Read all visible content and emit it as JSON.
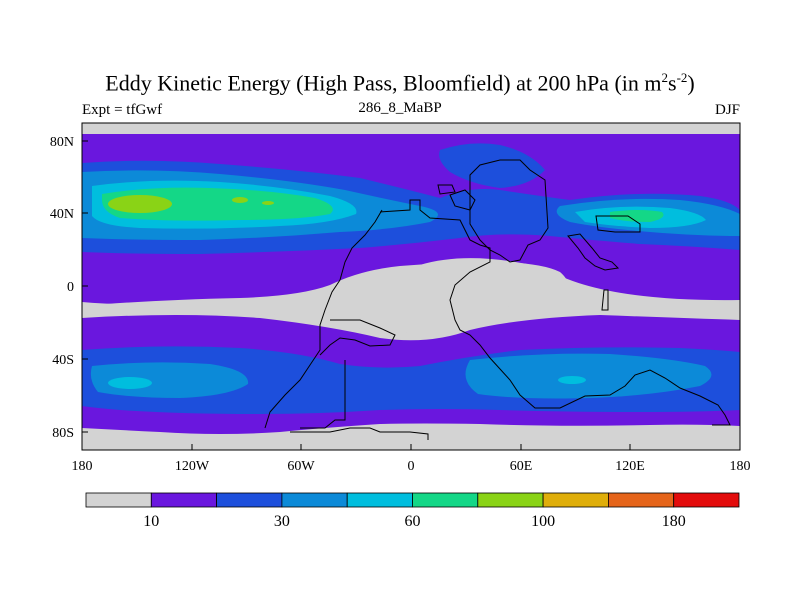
{
  "title": {
    "main": "Eddy Kinetic Energy (High Pass, Bloomfield) at 200 hPa (in m",
    "exp1": "2",
    "mid": "s",
    "exp2": "-2",
    "end": ")"
  },
  "experiment_label": "Expt = tfGwf",
  "subtitle": "286_8_MaBP",
  "season": "DJF",
  "lat_ticks": [
    "80N",
    "40N",
    "0",
    "40S",
    "80S"
  ],
  "lon_ticks": [
    "180",
    "120W",
    "60W",
    "0",
    "60E",
    "120E",
    "180"
  ],
  "colorbar": {
    "colors": [
      "#d3d3d3",
      "#6a17de",
      "#1d4fdc",
      "#0c8ad8",
      "#00bede",
      "#14d787",
      "#8ad316",
      "#dfae0a",
      "#e5641a",
      "#e30c0c"
    ],
    "labels": [
      "10",
      "30",
      "60",
      "100",
      "180"
    ],
    "label_after_box": [
      1,
      3,
      5,
      7,
      9
    ]
  },
  "colors": {
    "grey": "#d3d3d3",
    "purple": "#6a17de",
    "blue": "#1d4fdc",
    "mid_blue": "#0c8ad8",
    "cyan": "#00bede",
    "green": "#14d787",
    "yellow_green": "#8ad316"
  }
}
